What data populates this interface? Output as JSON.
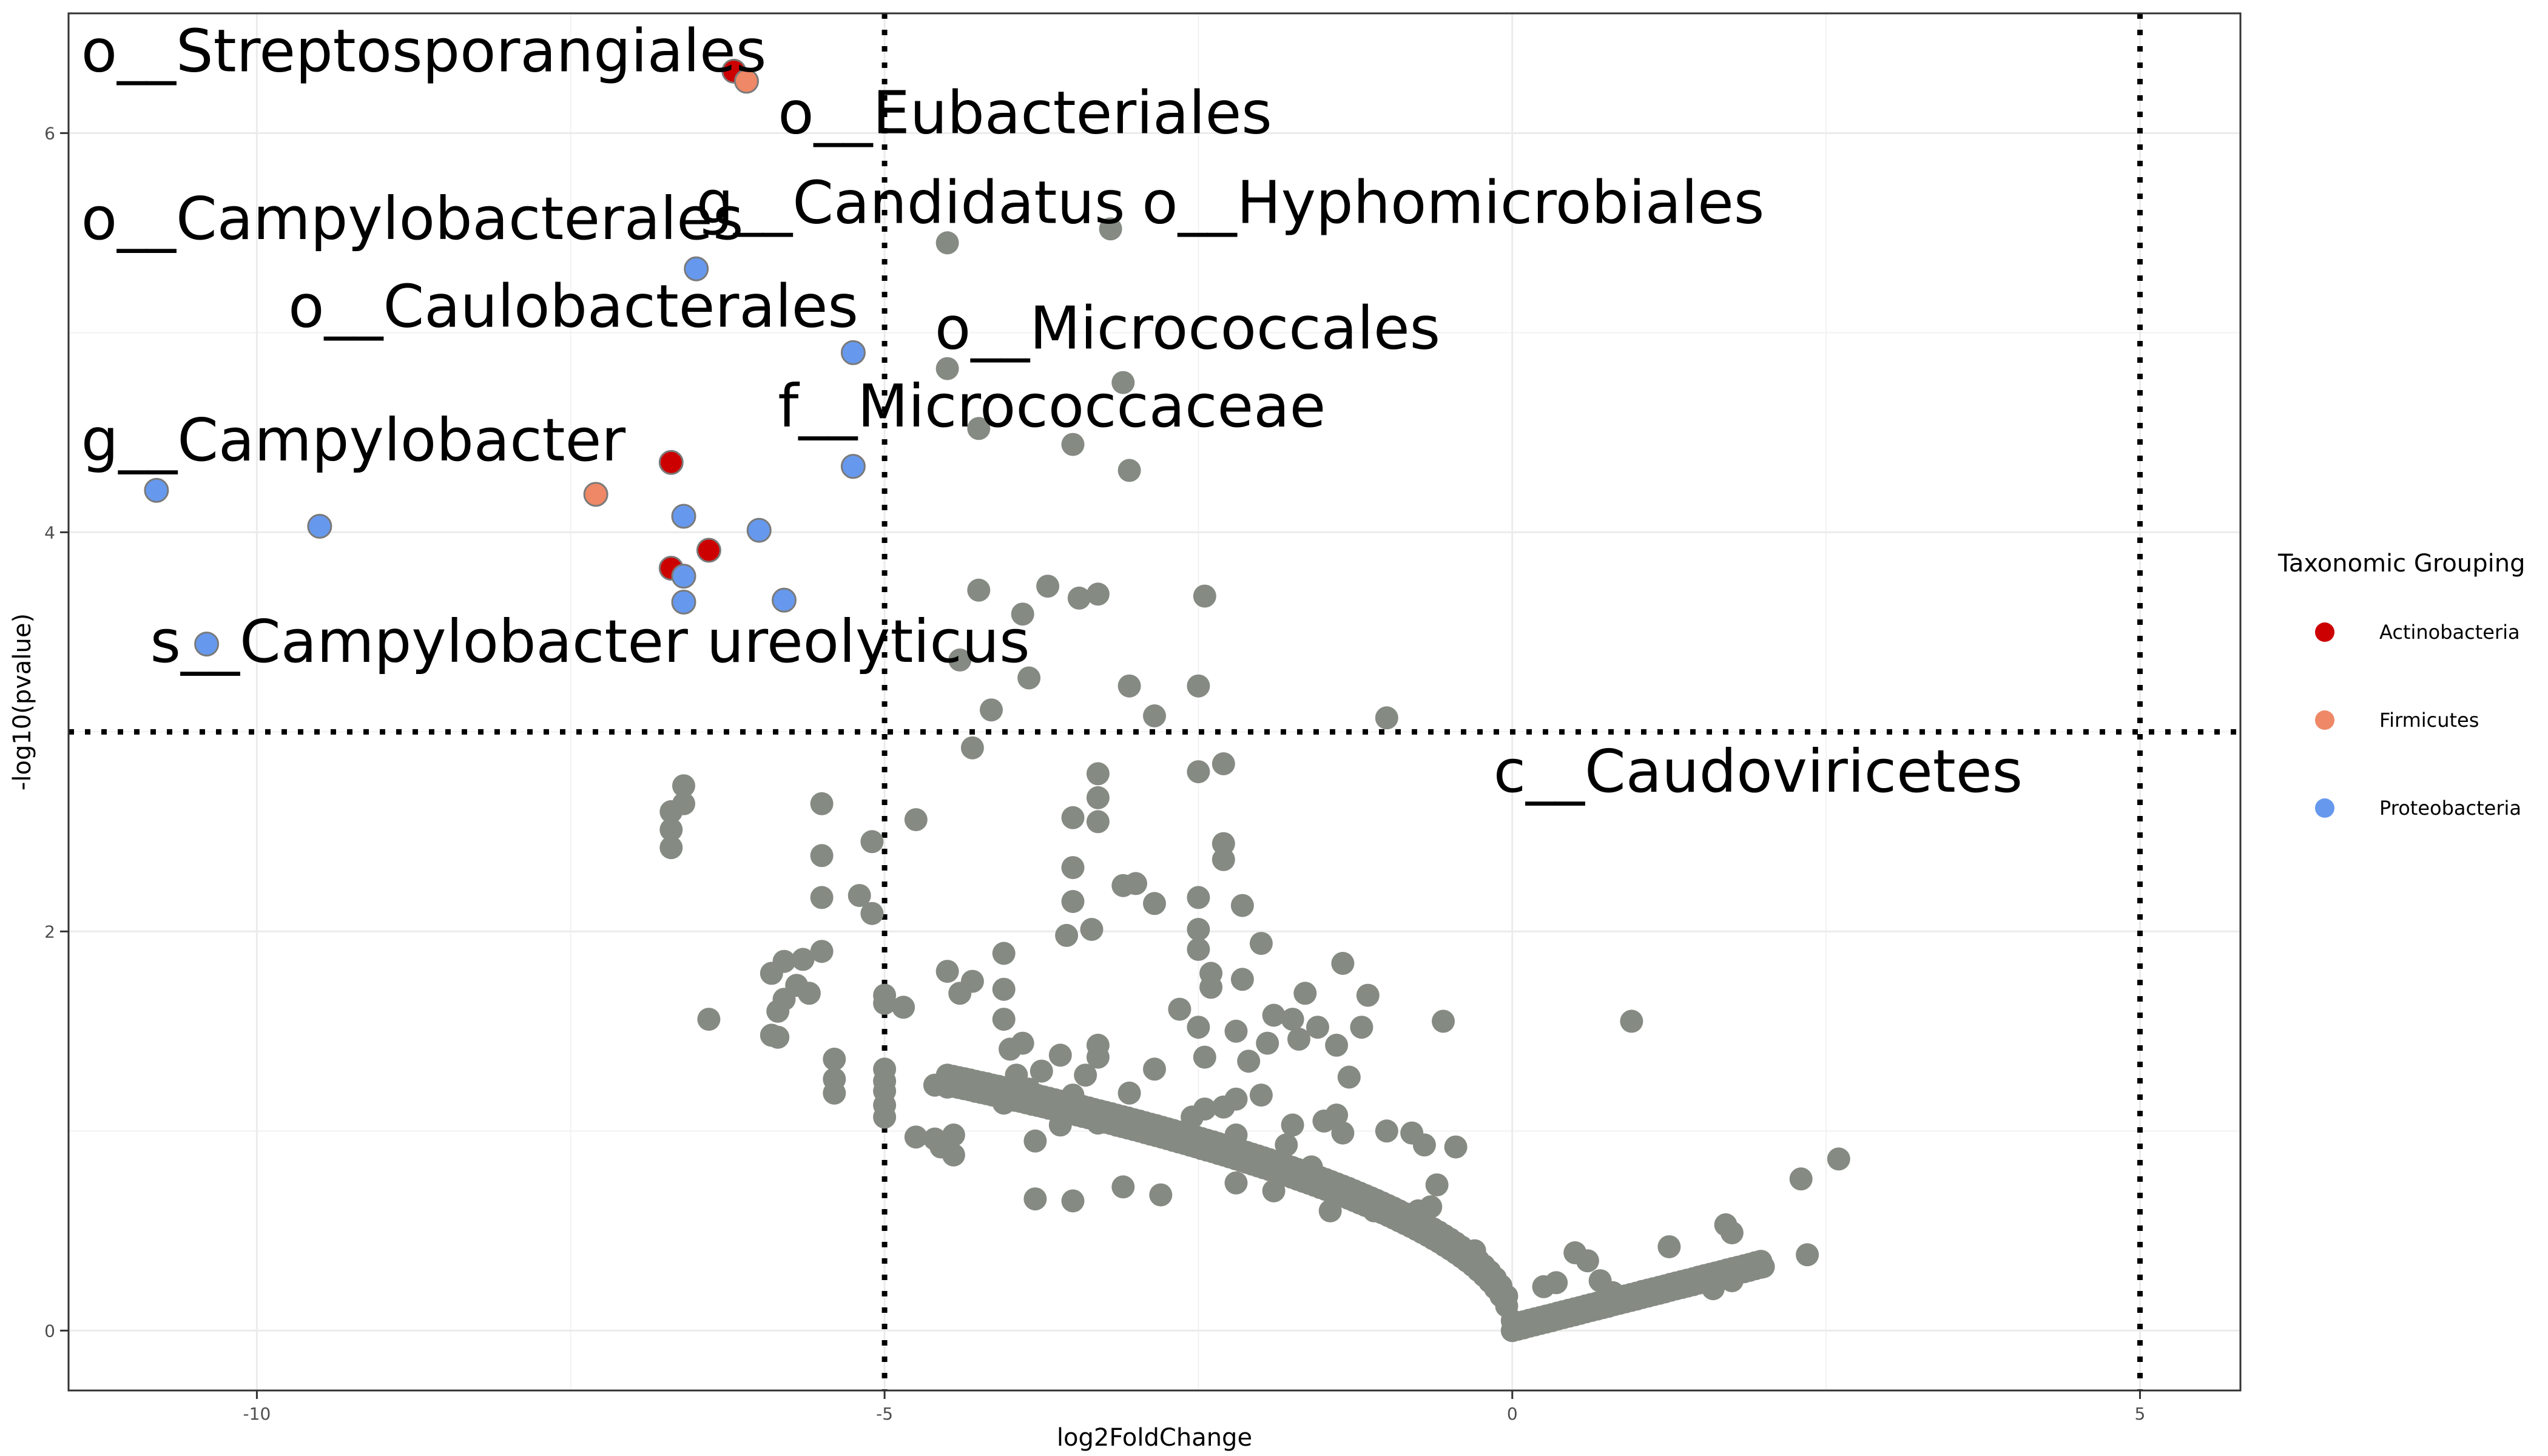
{
  "chart_data": {
    "type": "scatter",
    "title": "",
    "xlabel": "log2FoldChange",
    "ylabel": "-log10(pvalue)",
    "xlim": [
      -11.5,
      5.8
    ],
    "ylim": [
      -0.3,
      6.6
    ],
    "x_ticks": [
      -10,
      -5,
      0,
      5
    ],
    "y_ticks": [
      0,
      2,
      4,
      6
    ],
    "grid": true,
    "thresholds": {
      "x": [
        -5,
        5
      ],
      "y": 3
    },
    "legend": {
      "title": "Taxonomic Grouping",
      "position": "right",
      "entries": [
        {
          "name": "Actinobacteria",
          "color": "#CC0000"
        },
        {
          "name": "Firmicutes",
          "color": "#EE8866"
        },
        {
          "name": "Proteobacteria",
          "color": "#6699EE"
        }
      ]
    },
    "other_color": "#858B83",
    "series": [
      {
        "name": "Actinobacteria",
        "color": "#CC0000",
        "points": [
          [
            -6.2,
            6.31
          ],
          [
            -6.7,
            4.35
          ],
          [
            -6.4,
            3.91
          ],
          [
            -6.7,
            3.82
          ]
        ]
      },
      {
        "name": "Firmicutes",
        "color": "#EE8866",
        "points": [
          [
            -6.1,
            6.26
          ],
          [
            -7.3,
            4.19
          ]
        ]
      },
      {
        "name": "Proteobacteria",
        "color": "#6699EE",
        "points": [
          [
            -6.5,
            5.32
          ],
          [
            -5.25,
            4.9
          ],
          [
            -5.25,
            4.33
          ],
          [
            -10.8,
            4.21
          ],
          [
            -9.5,
            4.03
          ],
          [
            -6.6,
            4.08
          ],
          [
            -6.0,
            4.01
          ],
          [
            -6.6,
            3.78
          ],
          [
            -6.6,
            3.65
          ],
          [
            -5.8,
            3.66
          ],
          [
            -10.4,
            3.44
          ]
        ]
      },
      {
        "name": "",
        "color": "#858B83",
        "points": [
          [
            -3.2,
            5.52
          ],
          [
            -4.5,
            5.45
          ],
          [
            -4.5,
            4.82
          ],
          [
            -3.1,
            4.75
          ],
          [
            -4.25,
            4.52
          ],
          [
            -3.5,
            4.44
          ],
          [
            -3.05,
            4.31
          ],
          [
            -4.25,
            3.71
          ],
          [
            -3.7,
            3.73
          ],
          [
            -3.45,
            3.67
          ],
          [
            -3.3,
            3.69
          ],
          [
            -2.45,
            3.68
          ],
          [
            -3.9,
            3.59
          ],
          [
            -4.4,
            3.36
          ],
          [
            -3.85,
            3.27
          ],
          [
            -3.05,
            3.23
          ],
          [
            -2.5,
            3.23
          ],
          [
            -4.15,
            3.11
          ],
          [
            -2.85,
            3.08
          ],
          [
            -1.0,
            3.07
          ],
          [
            -4.3,
            2.92
          ],
          [
            -2.5,
            2.8
          ],
          [
            -2.3,
            2.84
          ],
          [
            -3.3,
            2.79
          ],
          [
            -3.3,
            2.67
          ],
          [
            -3.5,
            2.57
          ],
          [
            -3.3,
            2.55
          ],
          [
            -4.75,
            2.56
          ],
          [
            -5.5,
            2.64
          ],
          [
            -6.6,
            2.73
          ],
          [
            -6.7,
            2.6
          ],
          [
            -6.6,
            2.64
          ],
          [
            -6.7,
            2.51
          ],
          [
            -6.7,
            2.42
          ],
          [
            -5.5,
            2.38
          ],
          [
            -5.1,
            2.45
          ],
          [
            -3.5,
            2.32
          ],
          [
            -3.1,
            2.23
          ],
          [
            -3.0,
            2.24
          ],
          [
            -2.3,
            2.44
          ],
          [
            -2.3,
            2.36
          ],
          [
            -3.5,
            2.15
          ],
          [
            -2.85,
            2.14
          ],
          [
            -2.5,
            2.17
          ],
          [
            -2.15,
            2.13
          ],
          [
            -5.5,
            2.17
          ],
          [
            -5.2,
            2.18
          ],
          [
            -5.1,
            2.09
          ],
          [
            -3.35,
            2.01
          ],
          [
            -3.55,
            1.98
          ],
          [
            -2.5,
            2.01
          ],
          [
            -2.5,
            1.91
          ],
          [
            -2.0,
            1.94
          ],
          [
            -4.05,
            1.89
          ],
          [
            -1.35,
            1.84
          ],
          [
            -5.5,
            1.9
          ],
          [
            -5.65,
            1.86
          ],
          [
            -5.8,
            1.85
          ],
          [
            -5.9,
            1.79
          ],
          [
            -5.7,
            1.73
          ],
          [
            -5.8,
            1.66
          ],
          [
            -5.6,
            1.69
          ],
          [
            -4.5,
            1.8
          ],
          [
            -4.3,
            1.75
          ],
          [
            -4.05,
            1.71
          ],
          [
            -2.4,
            1.79
          ],
          [
            -2.4,
            1.72
          ],
          [
            -2.15,
            1.76
          ],
          [
            -1.65,
            1.69
          ],
          [
            -1.9,
            1.58
          ],
          [
            -1.75,
            1.56
          ],
          [
            -1.55,
            1.52
          ],
          [
            -1.7,
            1.46
          ],
          [
            -1.15,
            1.68
          ],
          [
            -1.2,
            1.52
          ],
          [
            -0.55,
            1.55
          ],
          [
            0.95,
            1.55
          ],
          [
            -6.4,
            1.56
          ],
          [
            -5.85,
            1.6
          ],
          [
            -5.85,
            1.47
          ],
          [
            -5.9,
            1.48
          ],
          [
            -5.0,
            1.68
          ],
          [
            -5.0,
            1.64
          ],
          [
            -4.85,
            1.62
          ],
          [
            -4.4,
            1.69
          ],
          [
            -4.05,
            1.56
          ],
          [
            -3.9,
            1.44
          ],
          [
            -4.0,
            1.41
          ],
          [
            -3.3,
            1.43
          ],
          [
            -3.3,
            1.37
          ],
          [
            -3.6,
            1.38
          ],
          [
            -3.75,
            1.3
          ],
          [
            -3.95,
            1.28
          ],
          [
            -2.65,
            1.61
          ],
          [
            -2.5,
            1.52
          ],
          [
            -2.45,
            1.37
          ],
          [
            -2.2,
            1.5
          ],
          [
            -1.95,
            1.44
          ],
          [
            -2.1,
            1.35
          ],
          [
            -1.4,
            1.43
          ],
          [
            -1.3,
            1.27
          ],
          [
            -5.4,
            1.36
          ],
          [
            -5.4,
            1.26
          ],
          [
            -5.4,
            1.19
          ],
          [
            -5.0,
            1.31
          ],
          [
            -5.0,
            1.25
          ],
          [
            -5.0,
            1.2
          ],
          [
            -5.0,
            1.13
          ],
          [
            -5.0,
            1.07
          ],
          [
            -4.6,
            1.23
          ],
          [
            -4.5,
            1.22
          ],
          [
            -4.1,
            1.19
          ],
          [
            -4.05,
            1.14
          ],
          [
            -3.85,
            1.21
          ],
          [
            -3.5,
            1.18
          ],
          [
            -3.4,
            1.28
          ],
          [
            -2.85,
            1.31
          ],
          [
            -3.05,
            1.19
          ],
          [
            -2.45,
            1.11
          ],
          [
            -2.55,
            1.07
          ],
          [
            -2.3,
            1.12
          ],
          [
            -2.2,
            1.16
          ],
          [
            -2.0,
            1.18
          ],
          [
            -1.75,
            1.03
          ],
          [
            -1.5,
            1.05
          ],
          [
            -1.4,
            1.08
          ],
          [
            -1.35,
            0.99
          ],
          [
            -4.75,
            0.97
          ],
          [
            -4.6,
            0.96
          ],
          [
            -4.55,
            0.92
          ],
          [
            -4.45,
            0.98
          ],
          [
            -4.45,
            0.88
          ],
          [
            -3.6,
            1.03
          ],
          [
            -3.3,
            1.04
          ],
          [
            -3.8,
            0.95
          ],
          [
            -2.9,
            1.0
          ],
          [
            -2.6,
            0.96
          ],
          [
            -2.2,
            0.98
          ],
          [
            -1.8,
            0.93
          ],
          [
            -1.0,
            1.0
          ],
          [
            -0.8,
            0.99
          ],
          [
            -0.7,
            0.93
          ],
          [
            -0.45,
            0.92
          ],
          [
            -0.6,
            0.73
          ],
          [
            -0.65,
            0.62
          ],
          [
            -0.3,
            0.4
          ],
          [
            -0.2,
            0.3
          ],
          [
            0.5,
            0.39
          ],
          [
            0.6,
            0.35
          ],
          [
            0.35,
            0.24
          ],
          [
            0.25,
            0.22
          ],
          [
            0.7,
            0.25
          ],
          [
            0.8,
            0.19
          ],
          [
            1.25,
            0.42
          ],
          [
            1.35,
            0.23
          ],
          [
            1.6,
            0.21
          ],
          [
            1.75,
            0.25
          ],
          [
            1.7,
            0.53
          ],
          [
            1.75,
            0.49
          ],
          [
            2.0,
            0.32
          ],
          [
            2.3,
            0.76
          ],
          [
            2.35,
            0.38
          ],
          [
            2.6,
            0.86
          ],
          [
            -1.9,
            0.7
          ],
          [
            -2.2,
            0.74
          ],
          [
            -2.8,
            0.68
          ],
          [
            -3.1,
            0.72
          ],
          [
            -3.5,
            0.65
          ],
          [
            -3.8,
            0.66
          ],
          [
            -1.6,
            0.82
          ],
          [
            -1.45,
            0.6
          ],
          [
            -1.1,
            0.6
          ],
          [
            -0.75,
            0.6
          ]
        ],
        "curve": {
          "x_range": [
            -4.5,
            2.0
          ],
          "step": 0.045,
          "b": 0.58,
          "c": 0.16
        }
      }
    ],
    "annotations": [
      {
        "text": "o__Streptosporangiales",
        "x": -11.4,
        "y": 6.31
      },
      {
        "text": "o__Eubacteriales",
        "x": -5.85,
        "y": 6.0
      },
      {
        "text": "g__Candidatus",
        "x": -6.5,
        "y": 5.55
      },
      {
        "text": "o__Hyphomicrobiales",
        "x": -2.95,
        "y": 5.55
      },
      {
        "text": "o__Campylobacterales",
        "x": -11.4,
        "y": 5.47
      },
      {
        "text": "o__Caulobacterales",
        "x": -9.75,
        "y": 5.03
      },
      {
        "text": "o__Micrococcales",
        "x": -4.6,
        "y": 4.92
      },
      {
        "text": "f__Micrococcaceae",
        "x": -5.85,
        "y": 4.53
      },
      {
        "text": "g__Campylobacter",
        "x": -11.4,
        "y": 4.36
      },
      {
        "text": "s__Campylobacter ureolyticus",
        "x": -10.85,
        "y": 3.35
      },
      {
        "text": "c__Caudoviricetes",
        "x": -0.15,
        "y": 2.7
      }
    ]
  }
}
